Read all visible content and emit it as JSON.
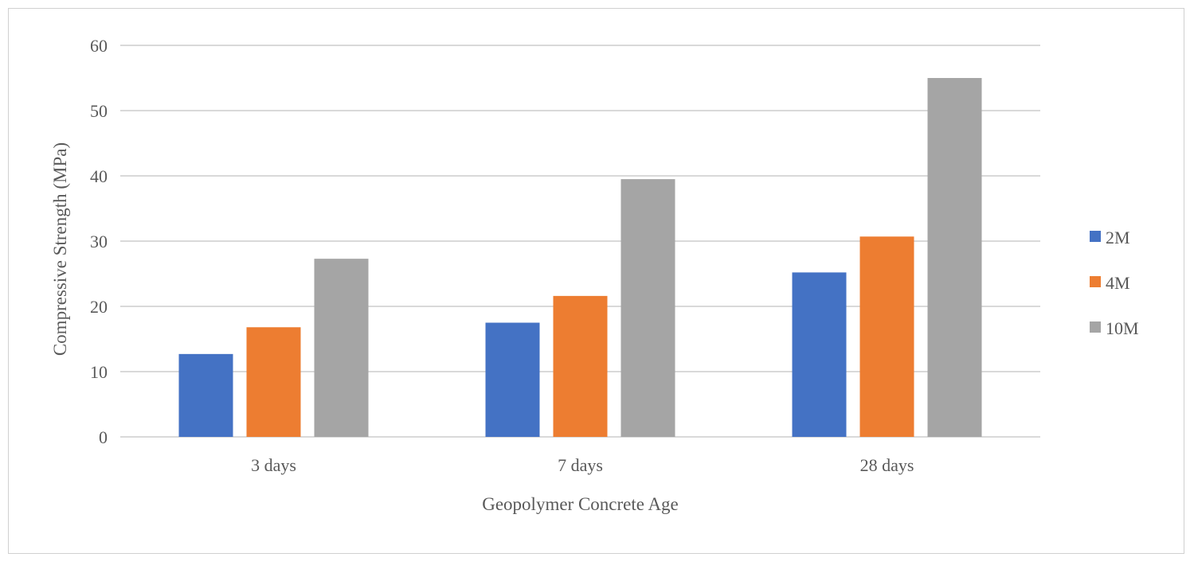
{
  "chart_data": {
    "type": "bar",
    "title": "",
    "xlabel": "Geopolymer Concrete Age",
    "ylabel": "Compressive Strength (MPa)",
    "categories": [
      "3 days",
      "7 days",
      "28 days"
    ],
    "ylim": [
      0,
      60
    ],
    "yticks": [
      0,
      10,
      20,
      30,
      40,
      50,
      60
    ],
    "ytick_labels": [
      "0",
      "10",
      "20",
      "30",
      "40",
      "50",
      "60"
    ],
    "grid": true,
    "legend_position": "right",
    "series": [
      {
        "name": "2M",
        "color": "#4472C4",
        "values": [
          12.7,
          17.5,
          25.2
        ]
      },
      {
        "name": "4M",
        "color": "#ED7D31",
        "values": [
          16.8,
          21.6,
          30.7
        ]
      },
      {
        "name": "10M",
        "color": "#A5A5A5",
        "values": [
          27.3,
          39.5,
          55.0
        ]
      }
    ]
  }
}
